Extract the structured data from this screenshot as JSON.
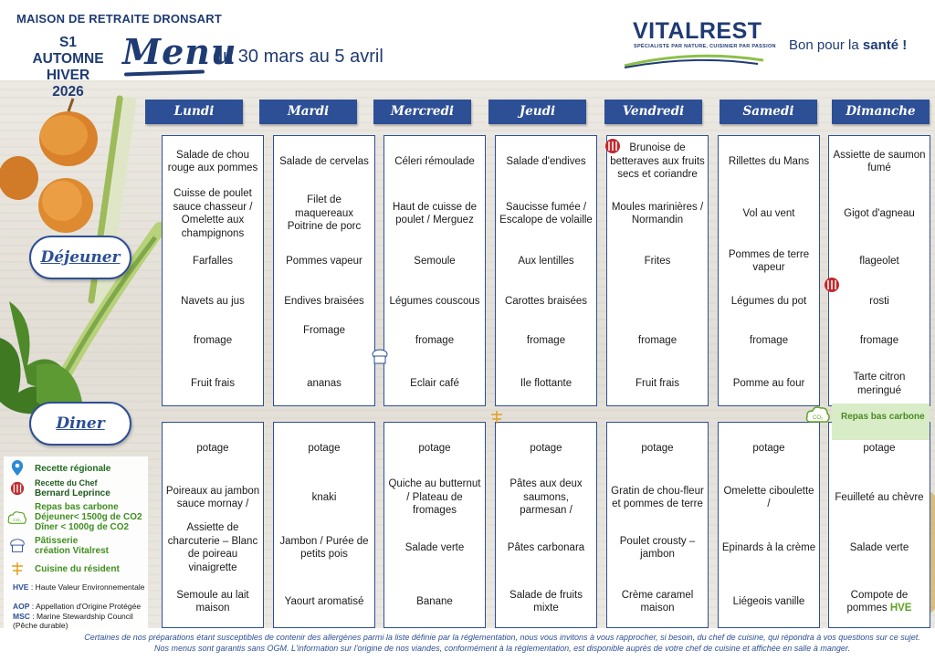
{
  "header": {
    "home_name": "MAISON DE RETRAITE DRONSART",
    "season_lines": [
      "S1",
      "AUTOMNE",
      "HIVER",
      "2026"
    ],
    "menu_word": "Menu",
    "dates": "du 30 mars au 5 avril",
    "brand": "VITALREST",
    "brand_tagline": "SPÉCIALISTE PAR NATURE, CUISINIER PAR PASSION",
    "slogan_prefix": "Bon pour la ",
    "slogan_bold": "santé !"
  },
  "meal_labels": {
    "lunch": "Déjeuner",
    "dinner": "Diner"
  },
  "days": [
    {
      "name": "Lundi",
      "lunch": [
        "Salade de chou rouge aux pommes",
        "Cuisse de poulet sauce chasseur / Omelette aux champignons",
        "Farfalles",
        "Navets au jus",
        "fromage",
        "Fruit frais"
      ],
      "dinner": [
        "potage",
        "Poireaux au jambon sauce mornay /",
        "Assiette de charcuterie – Blanc de poireau vinaigrette",
        "Semoule au lait maison"
      ]
    },
    {
      "name": "Mardi",
      "lunch": [
        "Salade de cervelas",
        "Filet de maquereaux Poitrine de porc",
        "Pommes vapeur",
        "Endives braisées",
        "Fromage",
        "ananas"
      ],
      "dinner": [
        "potage",
        "knaki",
        "Jambon / Purée de petits pois",
        "Yaourt aromatisé"
      ]
    },
    {
      "name": "Mercredi",
      "lunch": [
        "Céleri rémoulade",
        "Haut de cuisse de poulet / Merguez",
        "Semoule",
        "Légumes couscous",
        "fromage",
        "Eclair café"
      ],
      "dinner": [
        "potage",
        "Quiche au butternut / Plateau de fromages",
        "Salade verte",
        "Banane"
      ]
    },
    {
      "name": "Jeudi",
      "lunch": [
        "Salade d'endives",
        "Saucisse fumée / Escalope de volaille",
        "Aux lentilles",
        "Carottes braisées",
        "fromage",
        "Ile flottante"
      ],
      "dinner": [
        "potage",
        "Pâtes aux deux saumons, parmesan /",
        "Pâtes carbonara",
        "Salade de fruits mixte"
      ]
    },
    {
      "name": "Vendredi",
      "lunch": [
        "Brunoise de betteraves aux fruits secs et coriandre",
        "Moules marinières / Normandin",
        "Frites",
        "",
        "fromage",
        "Fruit frais"
      ],
      "dinner": [
        "potage",
        "Gratin de chou-fleur et pommes de terre",
        "Poulet crousty – jambon",
        "Crème caramel maison"
      ]
    },
    {
      "name": "Samedi",
      "lunch": [
        "Rillettes du Mans",
        "Vol au vent",
        "Pommes de terre vapeur",
        "Légumes du pot",
        "fromage",
        "Pomme au four"
      ],
      "dinner": [
        "potage",
        "Omelette ciboulette /",
        "Epinards à la crème",
        "Liégeois vanille"
      ]
    },
    {
      "name": "Dimanche",
      "lunch": [
        "Assiette de saumon fumé",
        "Gigot d'agneau",
        "flageolet",
        "rosti",
        "fromage",
        "Tarte citron meringué"
      ],
      "dinner": [
        "potage",
        "Feuilleté au chèvre",
        "Salade verte",
        "Compote de pommes"
      ]
    }
  ],
  "sunday_dessert_label": "HVE",
  "low_carbon_badge": "Repas bas carbone",
  "legend": {
    "regional": "Recette régionale",
    "chef_title": "Recette du Chef",
    "chef_name": "Bernard Leprince",
    "low_carbon_title": "Repas bas carbone",
    "low_carbon_lunch": "Déjeuner< 1500g de CO2",
    "low_carbon_dinner": "Dîner < 1000g de CO2",
    "pastry_title": "Pâtisserie",
    "pastry_sub": "création Vitalrest",
    "resident": "Cuisine du résident"
  },
  "abbreviations": [
    {
      "code": "HVE",
      "text": " : Haute Valeur Environnementale"
    },
    {
      "code": "AOP",
      "text": " : Appellation d'Origine Protégée"
    },
    {
      "code": "MSC",
      "text": " : Marine Stewardship Council (Pêche durable)"
    }
  ],
  "footer": "Certaines de nos préparations étant susceptibles de contenir des allergènes parmi la liste définie par la réglementation, nous vous invitons à vous rapprocher, si besoin, du chef de cuisine, qui répondra à vos questions sur ce sujet. Nos menus sont garantis sans OGM. L'information sur l'origine de nos viandes, conformément à la réglementation, est disponible auprès de votre chef de cuisine et affichée en salle à manger.",
  "colors": {
    "navy": "#2d4f95",
    "brand": "#1f3b73",
    "green": "#3f8f1f"
  }
}
